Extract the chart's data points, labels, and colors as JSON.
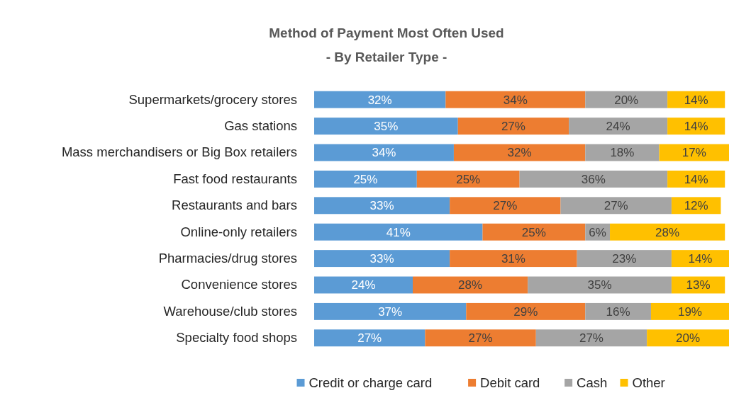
{
  "chart_data": {
    "type": "bar",
    "orientation": "horizontal",
    "stacked": true,
    "title": "Method of Payment Most Often Used",
    "subtitle": "- By Retailer Type -",
    "categories": [
      "Supermarkets/grocery stores",
      "Gas stations",
      "Mass merchandisers or Big Box retailers",
      "Fast food restaurants",
      "Restaurants and bars",
      "Online-only retailers",
      "Pharmacies/drug stores",
      "Convenience stores",
      "Warehouse/club stores",
      "Specialty food shops"
    ],
    "series": [
      {
        "name": "Credit or charge card",
        "color": "#5b9bd5",
        "values": [
          32,
          35,
          34,
          25,
          33,
          41,
          33,
          24,
          37,
          27
        ],
        "value_labels": [
          "32%",
          "35%",
          "34%",
          "25%",
          "33%",
          "41%",
          "33%",
          "24%",
          "37%",
          "27%"
        ]
      },
      {
        "name": "Debit card",
        "color": "#ed7d31",
        "values": [
          34,
          27,
          32,
          25,
          27,
          25,
          31,
          28,
          29,
          27
        ],
        "value_labels": [
          "34%",
          "27%",
          "32%",
          "25%",
          "27%",
          "25%",
          "31%",
          "28%",
          "29%",
          "27%"
        ]
      },
      {
        "name": "Cash",
        "color": "#a5a5a5",
        "values": [
          20,
          24,
          18,
          36,
          27,
          6,
          23,
          35,
          16,
          27
        ],
        "value_labels": [
          "20%",
          "24%",
          "18%",
          "36%",
          "27%",
          "6%",
          "23%",
          "35%",
          "16%",
          "27%"
        ]
      },
      {
        "name": "Other",
        "color": "#ffc000",
        "values": [
          14,
          14,
          17,
          14,
          12,
          28,
          14,
          13,
          19,
          20
        ],
        "value_labels": [
          "14%",
          "14%",
          "17%",
          "14%",
          "12%",
          "28%",
          "14%",
          "13%",
          "19%",
          "20%"
        ]
      }
    ],
    "legend": "bottom"
  }
}
